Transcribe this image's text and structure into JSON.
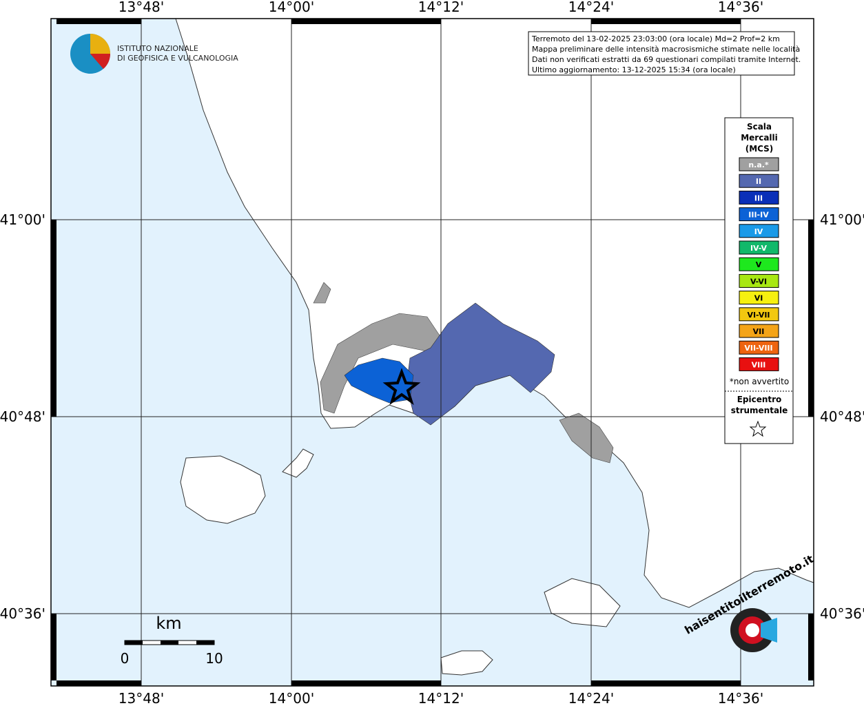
{
  "logo": {
    "line1": "ISTITUTO NAZIONALE",
    "line2": "DI GEOFISICA E VULCANOLOGIA"
  },
  "info": [
    "Terremoto del 13-02-2025 23:03:00 (ora locale) Md=2 Prof=2 km",
    "Mappa preliminare delle intensità macrosismiche stimate nelle località",
    "Dati non verificati estratti da 69 questionari compilati tramite Internet.",
    "Ultimo aggiornamento: 13-12-2025 15:34 (ora locale)"
  ],
  "longitudes": [
    "13°48'",
    "14°00'",
    "14°12'",
    "14°24'",
    "14°36'"
  ],
  "latitudes": [
    "41°00'",
    "40°48'",
    "40°36'"
  ],
  "legend": {
    "title": [
      "Scala",
      "Mercalli",
      "(MCS)"
    ],
    "items": [
      {
        "label": "n.a.*",
        "color": "#a0a0a0"
      },
      {
        "label": "II",
        "color": "#5468b0"
      },
      {
        "label": "III",
        "color": "#0a2fb8"
      },
      {
        "label": "III-IV",
        "color": "#0c62d6"
      },
      {
        "label": "IV",
        "color": "#1a9ae8"
      },
      {
        "label": "IV-V",
        "color": "#12b86a"
      },
      {
        "label": "V",
        "color": "#1ee81e"
      },
      {
        "label": "V-VI",
        "color": "#a8e812"
      },
      {
        "label": "VI",
        "color": "#f6f010"
      },
      {
        "label": "VI-VII",
        "color": "#f2c810"
      },
      {
        "label": "VII",
        "color": "#f4a418"
      },
      {
        "label": "VII-VIII",
        "color": "#ee6410"
      },
      {
        "label": "VIII",
        "color": "#e81010"
      }
    ],
    "note": "*non avvertito",
    "epicenter": [
      "Epicentro",
      "strumentale"
    ]
  },
  "scale": {
    "unit": "km",
    "min": "0",
    "max": "10"
  },
  "brand": "haisentitoilterremoto.it"
}
